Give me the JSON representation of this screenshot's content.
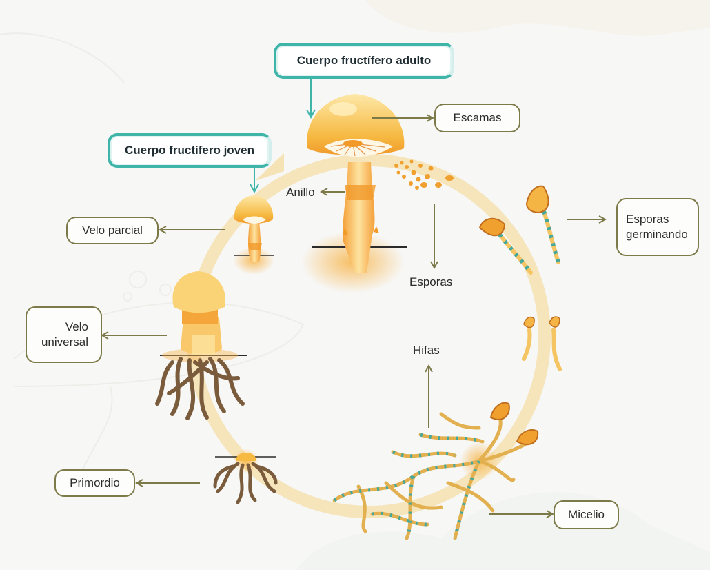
{
  "titles": {
    "adult": "Cuerpo fructífero adulto",
    "young": "Cuerpo fructífero joven"
  },
  "labels": {
    "escamas": "Escamas",
    "anillo": "Anillo",
    "velo_parcial": "Velo parcial",
    "esporas": "Esporas",
    "esporas_germinando_1": "Esporas",
    "esporas_germinando_2": "germinando",
    "velo_universal_1": "Velo",
    "velo_universal_2": "universal",
    "hifas": "Hifas",
    "primordio": "Primordio",
    "micelio": "Micelio"
  },
  "colors": {
    "cycle": "#f5d58a",
    "connector": "#7d7a49",
    "teal": "#3fb5a9",
    "cap": "#f6b941",
    "stem": "#f4a63a",
    "root": "#7a5c3c",
    "hypha": "#d6a648",
    "hypha_dot": "#46a79b"
  }
}
